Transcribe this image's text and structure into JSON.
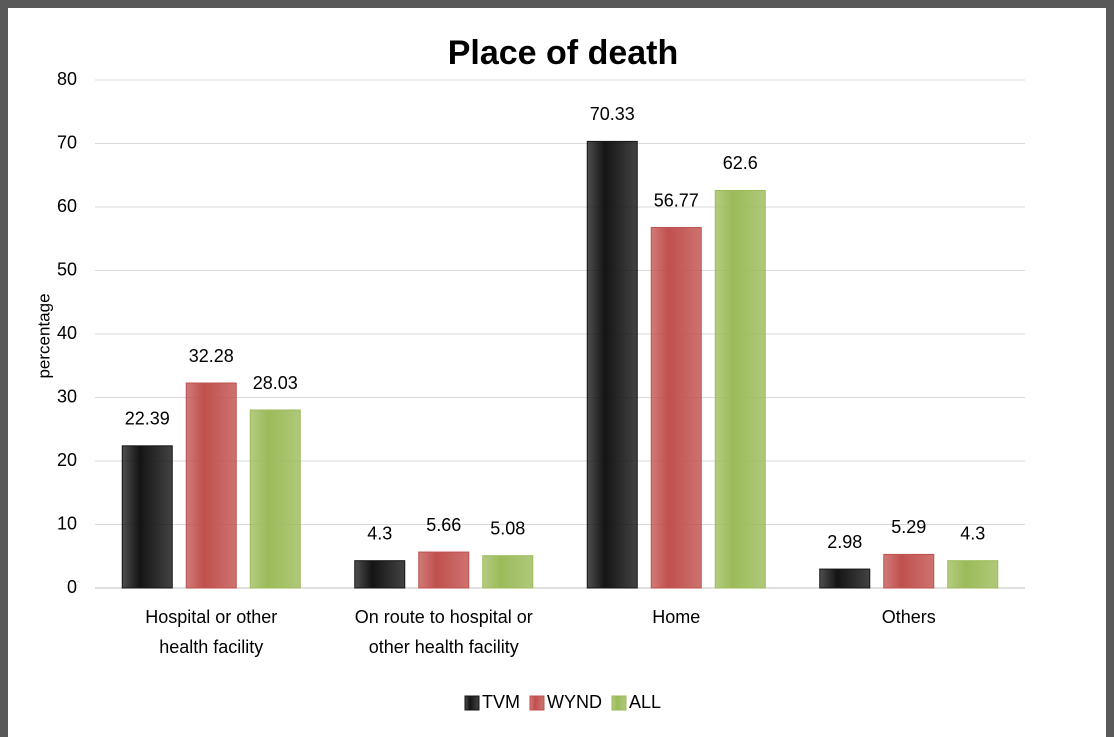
{
  "chart_data": {
    "type": "bar",
    "title": "Place of death",
    "y_label": "percentage",
    "categories": [
      "Hospital or other\nhealth facility",
      "On route to hospital or\nother health facility",
      "Home",
      "Others"
    ],
    "series": [
      {
        "name": "TVM",
        "color": "#141414",
        "values": [
          22.39,
          4.3,
          70.33,
          2.98
        ]
      },
      {
        "name": "WYND",
        "color": "#c0504d",
        "values": [
          32.28,
          5.66,
          56.77,
          5.29
        ]
      },
      {
        "name": "ALL",
        "color": "#9bbb59",
        "values": [
          28.03,
          5.08,
          62.6,
          4.3
        ]
      }
    ],
    "ylim": [
      0,
      80
    ],
    "yticks": [
      0,
      10,
      20,
      30,
      40,
      50,
      60,
      70,
      80
    ],
    "grid": true,
    "legend": "bottom"
  }
}
